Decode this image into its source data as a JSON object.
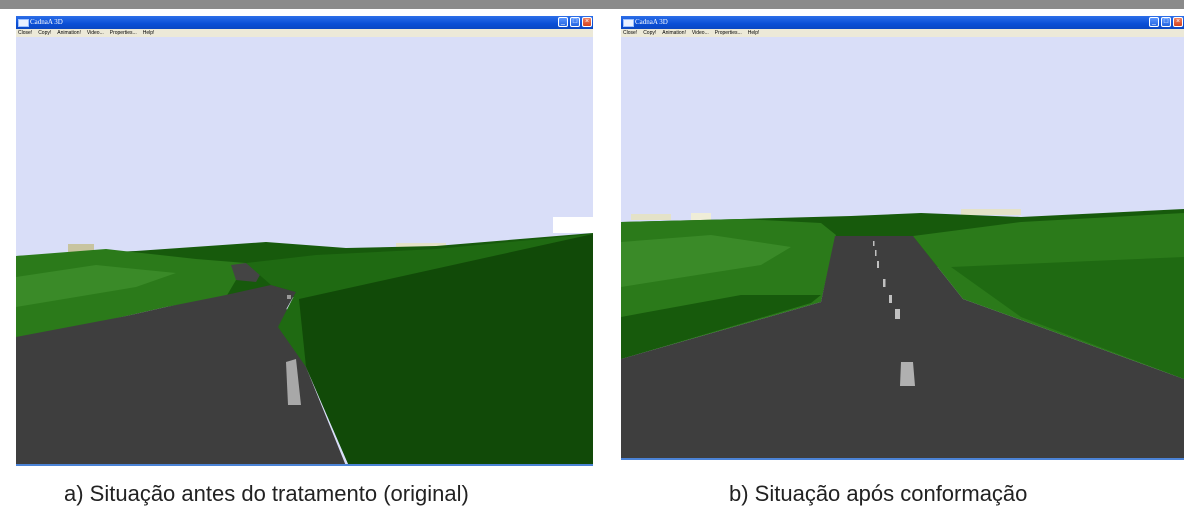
{
  "window_title": "CadnaA 3D",
  "menu": [
    "Close!",
    "Copy!",
    "Animation!",
    "Video...",
    "Properties...",
    "Help!"
  ],
  "window_buttons": {
    "minimize": "_",
    "maximize": "□",
    "close": "×"
  },
  "panels": [
    {
      "caption": "a) Situação antes do tratamento (original)"
    },
    {
      "caption": "b) Situação após conformação"
    }
  ],
  "colors": {
    "sky": "#d9def8",
    "grass": "#1f6a12",
    "road": "#3e3e3e",
    "titlebar": "#0a4fd6"
  }
}
